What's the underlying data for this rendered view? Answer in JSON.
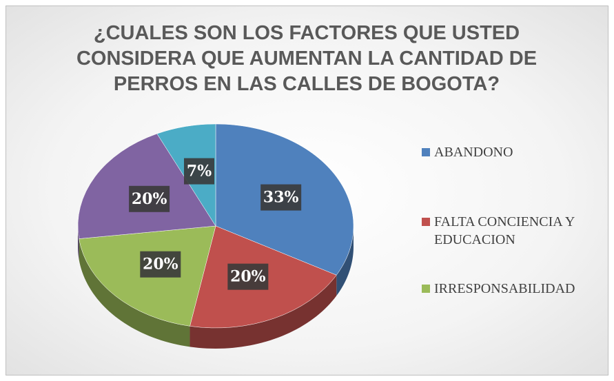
{
  "chart_data": {
    "type": "pie",
    "title": "¿CUALES SON LOS FACTORES QUE USTED CONSIDERA QUE AUMENTAN LA CANTIDAD DE PERROS EN LAS CALLES DE BOGOTA?",
    "categories": [
      "ABANDONO",
      "FALTA CONCIENCIA Y EDUCACION",
      "IRRESPONSABILIDAD",
      null,
      null
    ],
    "values": [
      33,
      20,
      20,
      20,
      7
    ],
    "value_labels": [
      "33%",
      "20%",
      "20%",
      "20%",
      "7%"
    ],
    "colors": [
      "#4f81bd",
      "#c0504d",
      "#9bbb59",
      "#8064a2",
      "#4bacc6"
    ]
  }
}
